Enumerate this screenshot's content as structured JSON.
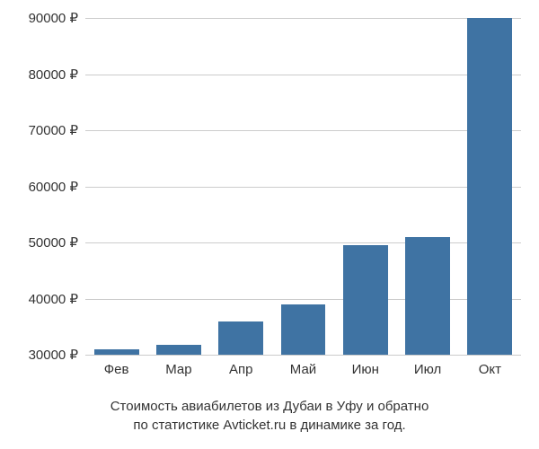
{
  "chart": {
    "type": "bar",
    "categories": [
      "Фев",
      "Мар",
      "Апр",
      "Май",
      "Июн",
      "Июл",
      "Окт"
    ],
    "values": [
      31000,
      31800,
      36000,
      39000,
      49500,
      51000,
      90000
    ],
    "bar_color": "#3f73a3",
    "ylim_min": 30000,
    "ylim_max": 90000,
    "ytick_step": 10000,
    "ytick_labels": [
      "30000 ₽",
      "40000 ₽",
      "50000 ₽",
      "60000 ₽",
      "70000 ₽",
      "80000 ₽",
      "90000 ₽"
    ],
    "ytick_values": [
      30000,
      40000,
      50000,
      60000,
      70000,
      80000,
      90000
    ],
    "background_color": "#ffffff",
    "grid_color": "#cccccc",
    "label_fontsize": 15,
    "label_color": "#333333",
    "bar_width_ratio": 0.72
  },
  "caption": {
    "line1": "Стоимость авиабилетов из Дубаи в Уфу и обратно",
    "line2": "по статистике Avticket.ru в динамике за год."
  }
}
